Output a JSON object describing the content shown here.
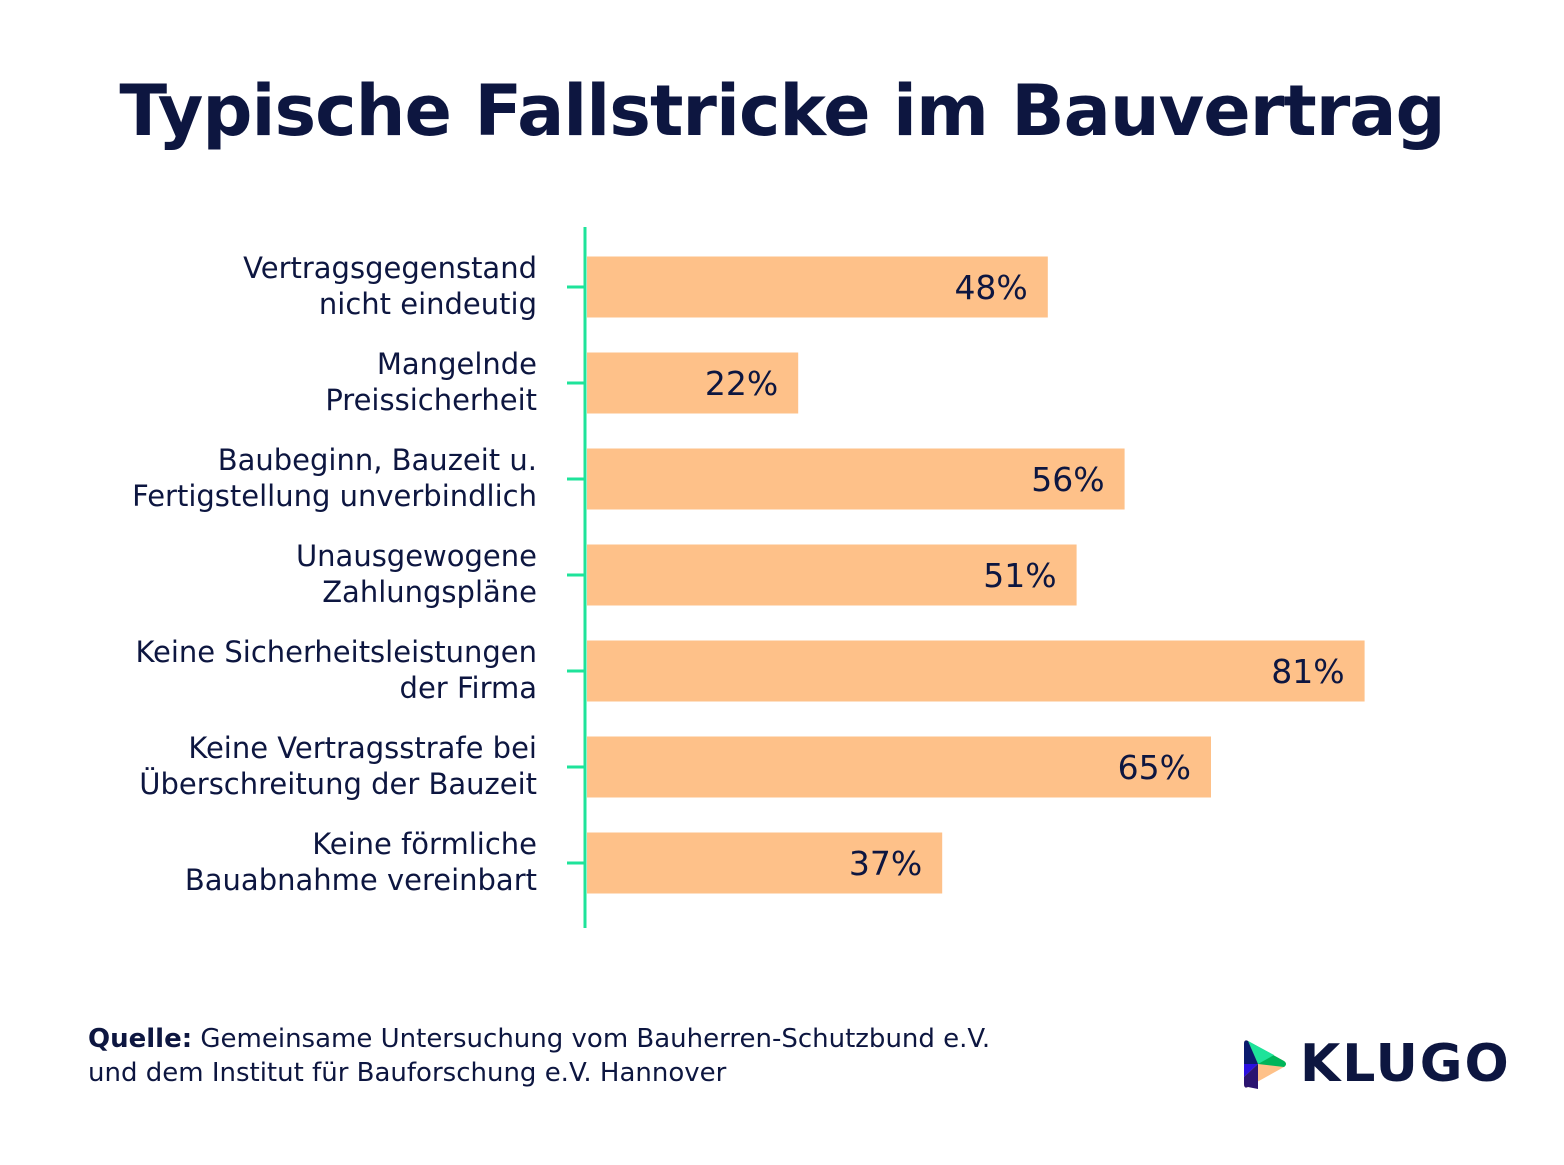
{
  "chart_data": {
    "type": "bar",
    "orientation": "horizontal",
    "title": "Typische Fallstricke im Bauvertrag",
    "categories": [
      [
        "Vertragsgegenstand",
        "nicht eindeutig"
      ],
      [
        "Mangelnde",
        "Preissicherheit"
      ],
      [
        "Baubeginn, Bauzeit u.",
        "Fertigstellung unverbindlich"
      ],
      [
        "Unausgewogene",
        "Zahlungspläne"
      ],
      [
        "Keine Sicherheitsleistungen",
        "der Firma"
      ],
      [
        "Keine Vertragsstrafe bei",
        "Überschreitung der Bauzeit"
      ],
      [
        "Keine förmliche",
        "Bauabnahme vereinbart"
      ]
    ],
    "values": [
      48,
      22,
      56,
      51,
      81,
      65,
      37
    ],
    "value_labels": [
      "48%",
      "22%",
      "56%",
      "51%",
      "81%",
      "65%",
      "37%"
    ],
    "xlim": [
      0,
      100
    ],
    "grid": false,
    "colors": {
      "bar": "#fec189",
      "axis": "#1ee39a",
      "text": "#0d1640"
    }
  },
  "footer": {
    "source_label": "Quelle:",
    "source_text_line1": "Gemeinsame Untersuchung vom Bauherren-Schutzbund e.V.",
    "source_text_line2": "und dem Institut für Bauforschung e.V. Hannover"
  },
  "logo": {
    "text": "KLUGO",
    "icon": "play-triangle-icon"
  }
}
